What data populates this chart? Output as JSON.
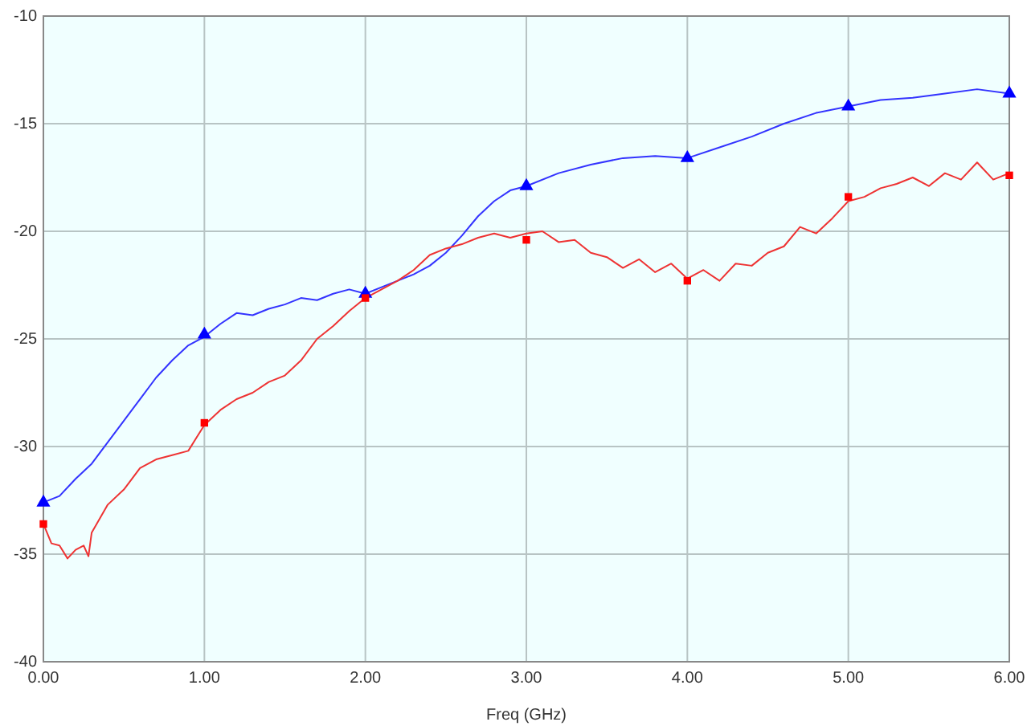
{
  "chart_data": {
    "type": "line",
    "xlabel": "Freq (GHz)",
    "xlim": [
      0,
      6
    ],
    "ylim": [
      -40,
      -10
    ],
    "xticks": [
      {
        "value": 0,
        "label": "0.00"
      },
      {
        "value": 1,
        "label": "1.00"
      },
      {
        "value": 2,
        "label": "2.00"
      },
      {
        "value": 3,
        "label": "3.00"
      },
      {
        "value": 4,
        "label": "4.00"
      },
      {
        "value": 5,
        "label": "5.00"
      },
      {
        "value": 6,
        "label": "6.00"
      }
    ],
    "yticks": [
      -40,
      -35,
      -30,
      -25,
      -20,
      -15,
      -10
    ],
    "grid": true,
    "series": [
      {
        "color": "#3333ff",
        "marker": "none",
        "x": [
          0,
          0.1,
          0.2,
          0.3,
          0.4,
          0.5,
          0.6,
          0.7,
          0.8,
          0.9,
          1.0,
          1.1,
          1.2,
          1.3,
          1.4,
          1.5,
          1.6,
          1.7,
          1.8,
          1.9,
          2.0,
          2.1,
          2.2,
          2.3,
          2.4,
          2.5,
          2.6,
          2.7,
          2.8,
          2.9,
          3.0,
          3.2,
          3.4,
          3.6,
          3.8,
          4.0,
          4.2,
          4.4,
          4.6,
          4.8,
          5.0,
          5.2,
          5.4,
          5.6,
          5.8,
          6.0
        ],
        "values": [
          -32.6,
          -32.3,
          -31.5,
          -30.8,
          -29.8,
          -28.8,
          -27.8,
          -26.8,
          -26,
          -25.3,
          -24.9,
          -24.3,
          -23.8,
          -23.9,
          -23.6,
          -23.4,
          -23.1,
          -23.2,
          -22.9,
          -22.7,
          -22.9,
          -22.6,
          -22.3,
          -22,
          -21.6,
          -21,
          -20.2,
          -19.3,
          -18.6,
          -18.1,
          -17.9,
          -17.3,
          -16.9,
          -16.6,
          -16.5,
          -16.6,
          -16.1,
          -15.6,
          -15,
          -14.5,
          -14.2,
          -13.9,
          -13.8,
          -13.6,
          -13.4,
          -13.6
        ]
      },
      {
        "color": "#ee3333",
        "marker": "none",
        "x": [
          0,
          0.05,
          0.1,
          0.15,
          0.2,
          0.25,
          0.28,
          0.3,
          0.4,
          0.5,
          0.6,
          0.7,
          0.8,
          0.9,
          0.95,
          1.0,
          1.1,
          1.2,
          1.3,
          1.4,
          1.5,
          1.6,
          1.7,
          1.8,
          1.9,
          2.0,
          2.1,
          2.2,
          2.3,
          2.4,
          2.5,
          2.6,
          2.7,
          2.8,
          2.9,
          3.0,
          3.1,
          3.2,
          3.3,
          3.4,
          3.5,
          3.6,
          3.7,
          3.8,
          3.9,
          4.0,
          4.1,
          4.2,
          4.3,
          4.4,
          4.5,
          4.6,
          4.7,
          4.8,
          4.9,
          5.0,
          5.1,
          5.2,
          5.3,
          5.4,
          5.5,
          5.6,
          5.7,
          5.8,
          5.9,
          6.0
        ],
        "values": [
          -33.6,
          -34.5,
          -34.6,
          -35.2,
          -34.8,
          -34.6,
          -35.1,
          -34,
          -32.7,
          -32,
          -31,
          -30.6,
          -30.4,
          -30.2,
          -29.6,
          -29,
          -28.3,
          -27.8,
          -27.5,
          -27,
          -26.7,
          -26,
          -25,
          -24.4,
          -23.7,
          -23.1,
          -22.7,
          -22.3,
          -21.8,
          -21.1,
          -20.8,
          -20.6,
          -20.3,
          -20.1,
          -20.3,
          -20.1,
          -20,
          -20.5,
          -20.4,
          -21,
          -21.2,
          -21.7,
          -21.3,
          -21.9,
          -21.5,
          -22.2,
          -21.8,
          -22.3,
          -21.5,
          -21.6,
          -21,
          -20.7,
          -19.8,
          -20.1,
          -19.4,
          -18.6,
          -18.4,
          -18,
          -17.8,
          -17.5,
          -17.9,
          -17.3,
          -17.6,
          -16.8,
          -17.6,
          -17.3
        ]
      },
      {
        "type": "scatter",
        "color": "#0000ff",
        "marker": "triangle",
        "x": [
          0,
          1,
          2,
          3,
          4,
          5,
          6
        ],
        "values": [
          -32.6,
          -24.8,
          -22.9,
          -17.9,
          -16.6,
          -14.2,
          -13.6
        ]
      },
      {
        "type": "scatter",
        "color": "#ff0000",
        "marker": "square",
        "x": [
          0,
          1,
          2,
          3,
          4,
          5,
          6
        ],
        "values": [
          -33.6,
          -28.9,
          -23.1,
          -20.4,
          -22.3,
          -18.4,
          -17.4
        ]
      }
    ]
  }
}
